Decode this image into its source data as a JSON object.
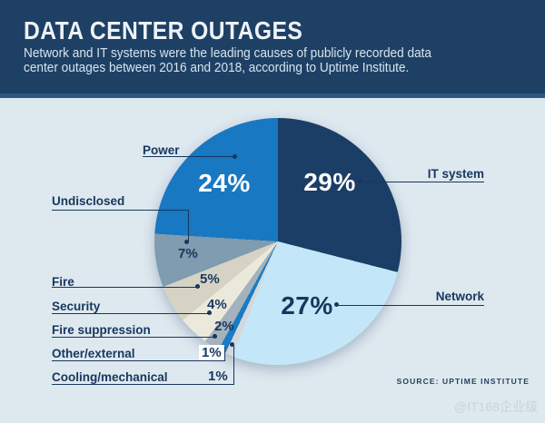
{
  "header": {
    "title": "DATA CENTER OUTAGES",
    "subtitle_line1": "Network and IT systems were the leading causes of publicly recorded data",
    "subtitle_line2": "center outages between 2016 and 2018, according to Uptime Institute."
  },
  "chart_data": {
    "type": "pie",
    "title": "DATA CENTER OUTAGES",
    "unit": "%",
    "start_angle_deg": 0,
    "direction": "clockwise",
    "legend_position": "callout labels around pie",
    "slices": [
      {
        "name": "IT system",
        "value": 29,
        "pct_label": "29%",
        "color": "#1b3e66"
      },
      {
        "name": "Network",
        "value": 27,
        "pct_label": "27%",
        "color": "#c3e7f8"
      },
      {
        "name": "Cooling/mechanical",
        "value": 1,
        "pct_label": "1%",
        "color": "#d2d8db"
      },
      {
        "name": "Other/external",
        "value": 1,
        "pct_label": "1%",
        "color": "#1a7cc4"
      },
      {
        "name": "Fire suppression",
        "value": 2,
        "pct_label": "2%",
        "color": "#a3b2bd"
      },
      {
        "name": "Security",
        "value": 4,
        "pct_label": "4%",
        "color": "#ebe9dc"
      },
      {
        "name": "Fire",
        "value": 5,
        "pct_label": "5%",
        "color": "#d6d3c5"
      },
      {
        "name": "Undisclosed",
        "value": 7,
        "pct_label": "7%",
        "color": "#7f9cb0"
      },
      {
        "name": "Power",
        "value": 24,
        "pct_label": "24%",
        "color": "#1878c2"
      }
    ]
  },
  "footer": {
    "source_label": "SOURCE: UPTIME INSTITUTE",
    "watermark": "@IT168企业级"
  },
  "colors": {
    "header_bg": "#1e4064",
    "header_strip": "#2e5884",
    "body_bg": "#dee8ef",
    "text_navy": "#17375e",
    "title_text": "#edf2f7",
    "subtitle_text": "#d7e4ef"
  }
}
